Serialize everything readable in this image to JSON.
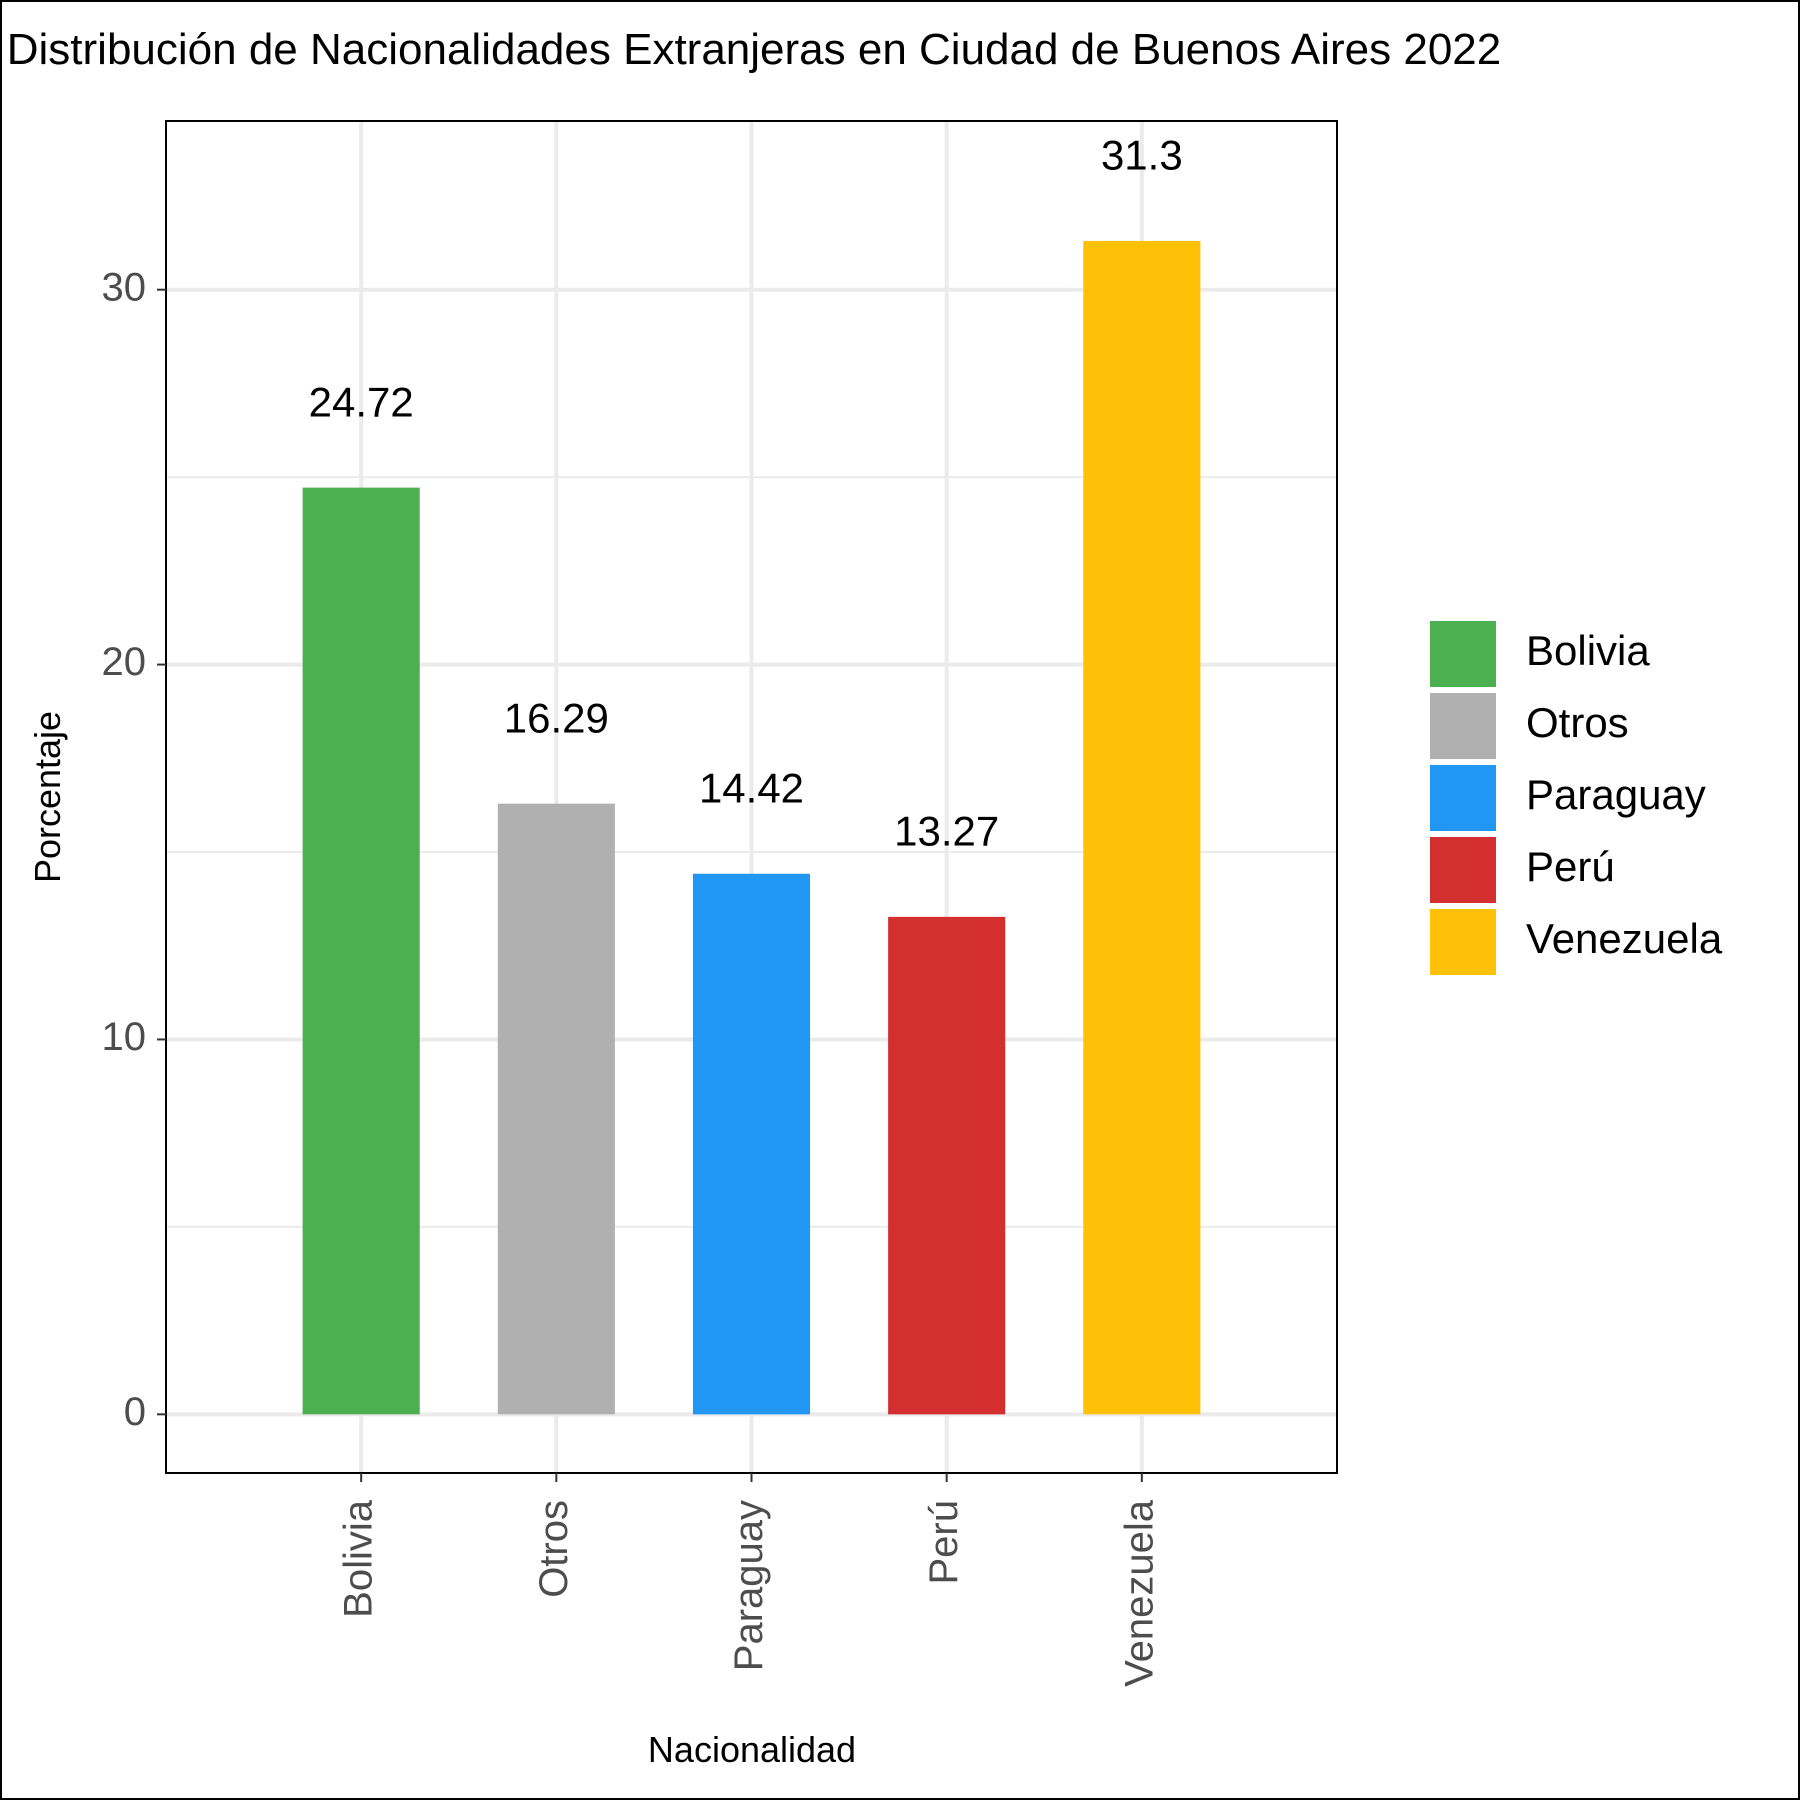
{
  "chart_data": {
    "type": "bar",
    "title": "Distribución de Nacionalidades Extranjeras en Ciudad de Buenos Aires 2022",
    "xlabel": "Nacionalidad",
    "ylabel": "Porcentaje",
    "categories": [
      "Bolivia",
      "Otros",
      "Paraguay",
      "Perú",
      "Venezuela"
    ],
    "values": [
      24.72,
      16.29,
      14.42,
      13.27,
      31.3
    ],
    "value_labels": [
      "24.72",
      "16.29",
      "14.42",
      "13.27",
      "31.3"
    ],
    "colors": [
      "#4CAF50",
      "#B0B0B0",
      "#2196F3",
      "#D32F2F",
      "#FFC107"
    ],
    "ylim": [
      -1.565,
      34.5
    ],
    "yticks": [
      0,
      10,
      20,
      30
    ],
    "ytick_labels": [
      "0",
      "10",
      "20",
      "30"
    ],
    "grid": true,
    "legend": {
      "position": "right",
      "entries": [
        "Bolivia",
        "Otros",
        "Paraguay",
        "Perú",
        "Venezuela"
      ]
    },
    "x_tick_rotation": "vertical"
  }
}
